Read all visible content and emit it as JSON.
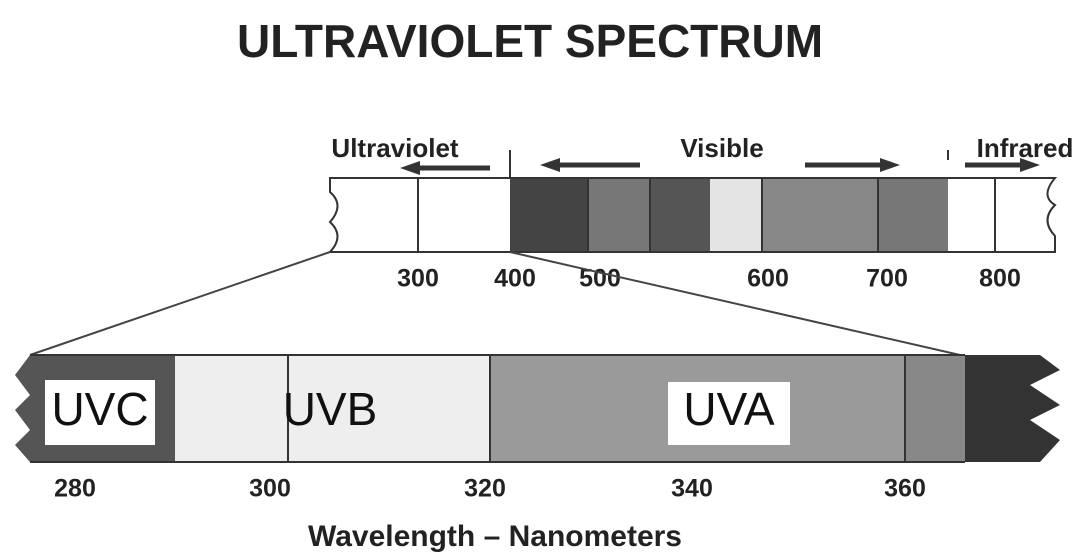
{
  "title": "ULTRAVIOLET SPECTRUM",
  "regions": [
    "Ultraviolet",
    "Visible",
    "Infrared"
  ],
  "top_scale": [
    300,
    400,
    500,
    600,
    700,
    800
  ],
  "bands": [
    "UVC",
    "UVB",
    "UVA"
  ],
  "bottom_scale": [
    280,
    300,
    320,
    340,
    360
  ],
  "axis_label": "Wavelength – Nanometers"
}
